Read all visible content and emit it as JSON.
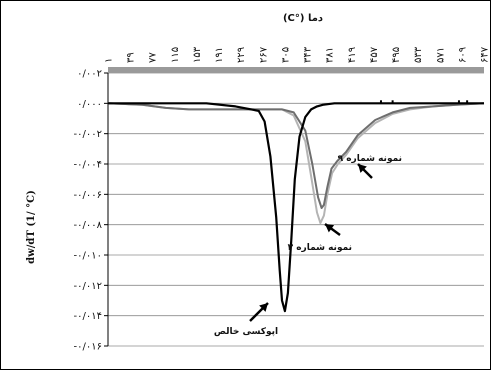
{
  "chart_data": {
    "type": "line",
    "title": "دما (°C)",
    "xlabel": "",
    "ylabel": "dw/dT (1/ °C)",
    "xlim": [
      1,
      647
    ],
    "ylim": [
      -0.016,
      0.002
    ],
    "x_ticks": [
      "۱",
      "۳۹",
      "۷۷",
      "۱۱۵",
      "۱۵۳",
      "۱۹۱",
      "۲۲۹",
      "۲۶۷",
      "۳۰۵",
      "۳۴۳",
      "۳۸۱",
      "۴۱۹",
      "۴۵۷",
      "۴۹۵",
      "۵۳۳",
      "۵۷۱",
      "۶۰۹",
      "۶۴۷"
    ],
    "x_tick_values": [
      1,
      39,
      77,
      115,
      153,
      191,
      229,
      267,
      305,
      343,
      381,
      419,
      457,
      495,
      533,
      571,
      609,
      647
    ],
    "y_ticks": [
      "۰/۰۰۲",
      "۰/۰۰۰",
      "-۰/۰۰۲",
      "-۰/۰۰۴",
      "-۰/۰۰۶",
      "-۰/۰۰۸",
      "-۰/۰۱۰",
      "-۰/۰۱۲",
      "-۰/۰۱۴",
      "-۰/۰۱۶"
    ],
    "y_tick_values": [
      0.002,
      0,
      -0.002,
      -0.004,
      -0.006,
      -0.008,
      -0.01,
      -0.012,
      -0.014,
      -0.016
    ],
    "grid": true,
    "series": [
      {
        "name": "اپوکسی خالص",
        "color": "#000000",
        "x": [
          1,
          60,
          100,
          140,
          170,
          220,
          260,
          270,
          280,
          290,
          296,
          300,
          305,
          310,
          316,
          322,
          330,
          340,
          350,
          360,
          370,
          390,
          420,
          460,
          500,
          540,
          580,
          620,
          647
        ],
        "y": [
          0,
          0,
          0,
          0,
          0,
          -0.0002,
          -0.0005,
          -0.0012,
          -0.0035,
          -0.0075,
          -0.011,
          -0.013,
          -0.0137,
          -0.0125,
          -0.009,
          -0.005,
          -0.0022,
          -0.0009,
          -0.0004,
          -0.0002,
          -0.0001,
          0,
          0,
          0,
          0,
          0,
          0,
          0,
          0
        ]
      },
      {
        "name": "نمونه شماره ۹",
        "color": "#6e6e6e",
        "x": [
          1,
          60,
          100,
          140,
          200,
          260,
          300,
          320,
          340,
          352,
          362,
          368,
          372,
          378,
          385,
          395,
          410,
          430,
          460,
          490,
          520,
          560,
          600,
          647
        ],
        "y": [
          0,
          -0.0001,
          -0.0003,
          -0.0004,
          -0.0004,
          -0.0004,
          -0.0004,
          -0.0006,
          -0.0018,
          -0.004,
          -0.0062,
          -0.0069,
          -0.0067,
          -0.0055,
          -0.0043,
          -0.0038,
          -0.0032,
          -0.0021,
          -0.0011,
          -0.0006,
          -0.0003,
          -0.0002,
          -0.0001,
          0
        ]
      },
      {
        "name": "نمونه شماره ۳",
        "color": "#b4b4b4",
        "x": [
          1,
          60,
          100,
          140,
          200,
          260,
          300,
          320,
          340,
          350,
          360,
          366,
          372,
          378,
          386,
          396,
          410,
          430,
          460,
          490,
          520,
          560,
          600,
          647
        ],
        "y": [
          0,
          -0.0001,
          -0.0003,
          -0.0004,
          -0.0004,
          -0.0004,
          -0.0004,
          -0.0008,
          -0.0025,
          -0.0048,
          -0.0072,
          -0.0079,
          -0.0074,
          -0.006,
          -0.0046,
          -0.004,
          -0.0034,
          -0.0023,
          -0.0013,
          -0.0007,
          -0.0004,
          -0.0002,
          -0.0001,
          0
        ]
      }
    ],
    "annotations": [
      {
        "text": "نمونه شماره ۹",
        "series": 1,
        "x": 372,
        "y": -0.0041
      },
      {
        "text": "نمونه شماره ۳",
        "series": 2,
        "x": 366,
        "y": -0.0079
      },
      {
        "text": "اپوکسی خالص",
        "series": 0,
        "x": 305,
        "y": -0.0137
      }
    ]
  }
}
